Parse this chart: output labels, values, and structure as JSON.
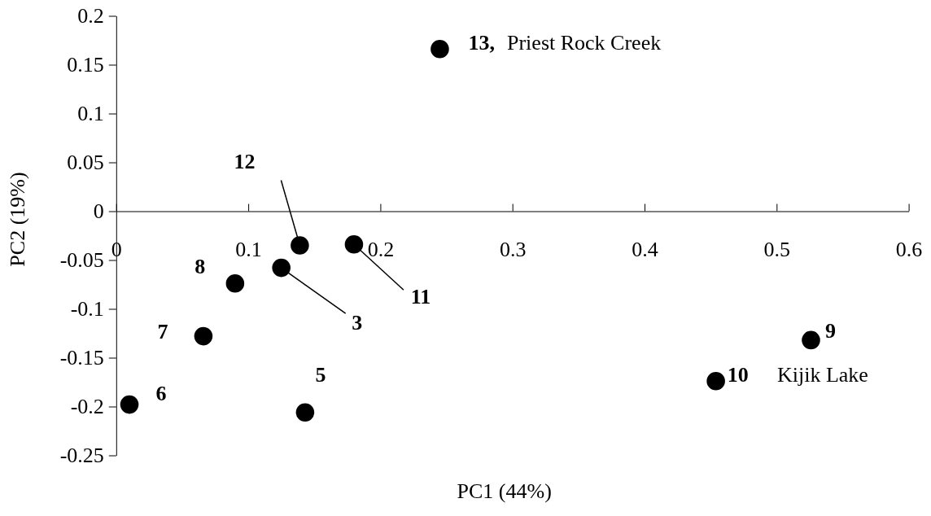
{
  "chart_data": {
    "type": "scatter",
    "xlabel": "PC1 (44%)",
    "ylabel": "PC2 (19%)",
    "x": [
      0.245,
      0.139,
      0.18,
      0.125,
      0.09,
      0.066,
      0.01,
      0.143,
      0.526,
      0.454
    ],
    "series": [
      {
        "color": "#000000",
        "values": [
          0.166,
          -0.035,
          -0.034,
          -0.058,
          -0.074,
          -0.128,
          -0.198,
          -0.206,
          -0.132,
          -0.174
        ]
      }
    ],
    "marker": "circle",
    "grid": false,
    "xlim": [
      0,
      0.6
    ],
    "xticks": [
      0,
      0.1,
      0.2,
      0.3,
      0.4,
      0.5,
      0.6
    ],
    "ylim": [
      -0.25,
      0.2
    ],
    "yticks": [
      -0.25,
      -0.2,
      -0.15,
      -0.1,
      -0.05,
      0,
      0.05,
      0.1,
      0.15,
      0.2
    ],
    "annotations": [
      {
        "text": "13,",
        "x": 0.245,
        "y": 0.166
      },
      "Priest Rock Creek",
      {
        "text": "12",
        "x": 0.139,
        "y": -0.035
      },
      {
        "text": "11",
        "x": 0.18,
        "y": -0.034
      },
      {
        "text": "3",
        "x": 0.125,
        "y": -0.058
      },
      {
        "text": "8",
        "x": 0.09,
        "y": -0.074
      },
      {
        "text": "7",
        "x": 0.066,
        "y": -0.128
      },
      {
        "text": "6",
        "x": 0.01,
        "y": -0.198
      },
      {
        "text": "5",
        "x": 0.143,
        "y": -0.206
      },
      {
        "text": "9",
        "x": 0.526,
        "y": -0.132
      },
      {
        "text": "10",
        "x": 0.454,
        "y": -0.174
      },
      "Kijik Lake"
    ]
  }
}
